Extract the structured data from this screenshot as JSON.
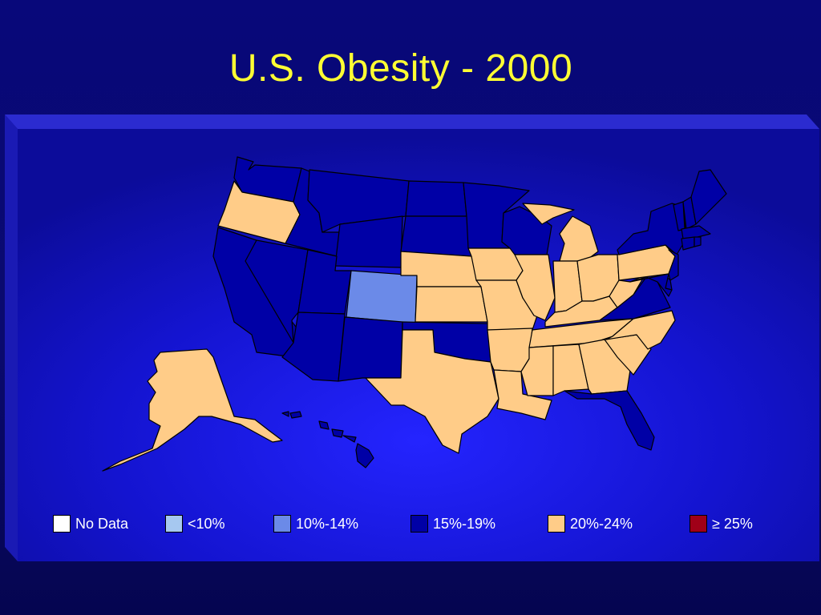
{
  "slide": {
    "title": "U.S. Obesity - 2000"
  },
  "colors": {
    "no_data": "#ffffff",
    "lt10": "#a6c8f0",
    "10_14": "#6b8ae8",
    "15_19": "#0000a6",
    "20_24": "#ffcc88",
    "ge25": "#a00018",
    "state_border": "#000000"
  },
  "legend": [
    {
      "label": "No Data",
      "color": "#ffffff"
    },
    {
      "label": "<10%",
      "color": "#a6c8f0"
    },
    {
      "label": "10%-14%",
      "color": "#6b8ae8"
    },
    {
      "label": "15%-19%",
      "color": "#0000a6"
    },
    {
      "label": "20%-24%",
      "color": "#ffcc88"
    },
    {
      "label": "≥ 25%",
      "color": "#a00018"
    }
  ],
  "states": {
    "WA": "15-19%",
    "OR": "20-24%",
    "CA": "15-19%",
    "NV": "15-19%",
    "ID": "15-19%",
    "MT": "15-19%",
    "WY": "15-19%",
    "UT": "15-19%",
    "AZ": "15-19%",
    "NM": "15-19%",
    "CO": "10-14%",
    "ND": "15-19%",
    "SD": "15-19%",
    "NE": "20-24%",
    "KS": "20-24%",
    "OK": "15-19%",
    "TX": "20-24%",
    "MN": "15-19%",
    "IA": "20-24%",
    "MO": "20-24%",
    "AR": "20-24%",
    "LA": "20-24%",
    "WI": "15-19%",
    "IL": "20-24%",
    "MI": "20-24%",
    "IN": "20-24%",
    "OH": "20-24%",
    "KY": "20-24%",
    "TN": "20-24%",
    "MS": "20-24%",
    "AL": "20-24%",
    "GA": "20-24%",
    "FL": "15-19%",
    "SC": "20-24%",
    "NC": "20-24%",
    "VA": "15-19%",
    "WV": "20-24%",
    "PA": "20-24%",
    "NY": "15-19%",
    "NJ": "15-19%",
    "DE": "15-19%",
    "MD": "15-19%",
    "CT": "15-19%",
    "RI": "15-19%",
    "MA": "15-19%",
    "VT": "15-19%",
    "NH": "15-19%",
    "ME": "15-19%",
    "AK": "20-24%",
    "HI": "15-19%"
  }
}
